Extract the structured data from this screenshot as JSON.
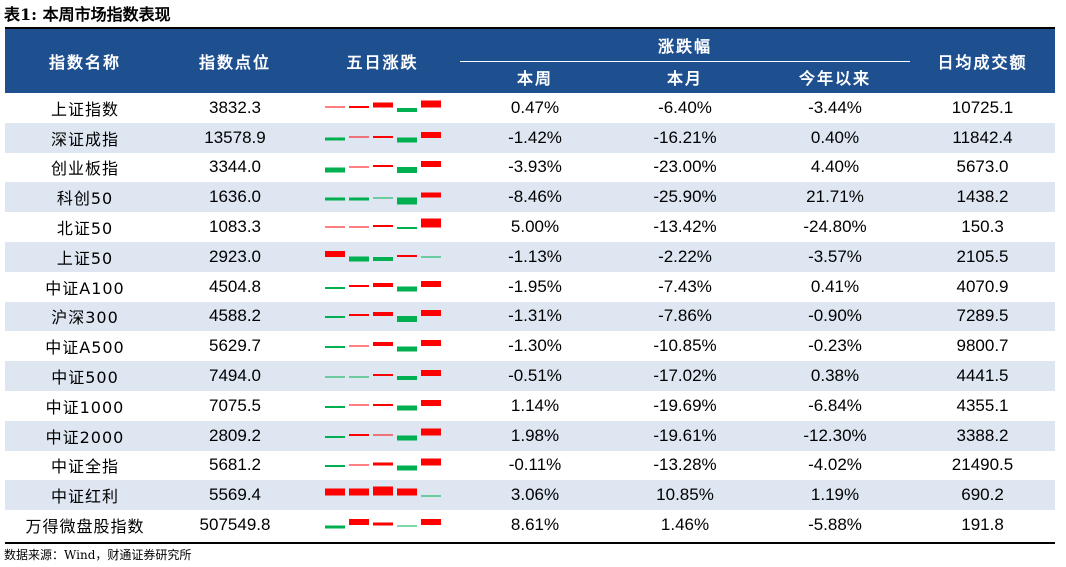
{
  "title": "表1: 本周市场指数表现",
  "header": {
    "name": "指数名称",
    "level": "指数点位",
    "five_day": "五日涨跌",
    "change_group": "涨跌幅",
    "week": "本周",
    "month": "本月",
    "ytd": "今年以来",
    "turnover": "日均成交额"
  },
  "colors": {
    "up": "#ff0000",
    "down": "#00b050",
    "header_bg": "#1e4f8f",
    "stripe": "#dde6f1"
  },
  "five_day_scale_pct": 2.5,
  "rows": [
    {
      "name": "上证指数",
      "level": "3832.3",
      "week": "0.47%",
      "month": "-6.40%",
      "ytd": "-3.44%",
      "turnover": "10725.1",
      "five_day": [
        0.1,
        0.4,
        0.9,
        -0.7,
        1.3
      ]
    },
    {
      "name": "深证成指",
      "level": "13578.9",
      "week": "-1.42%",
      "month": "-16.21%",
      "ytd": "0.40%",
      "turnover": "11842.4",
      "five_day": [
        -0.6,
        0.1,
        0.4,
        -0.9,
        1.1
      ]
    },
    {
      "name": "创业板指",
      "level": "3344.0",
      "week": "-3.93%",
      "month": "-23.00%",
      "ytd": "4.40%",
      "turnover": "5673.0",
      "five_day": [
        -0.9,
        0.1,
        0.4,
        -1.2,
        1.2
      ]
    },
    {
      "name": "科创50",
      "level": "1636.0",
      "week": "-8.46%",
      "month": "-25.90%",
      "ytd": "21.71%",
      "turnover": "1438.2",
      "five_day": [
        -0.6,
        -0.6,
        -0.1,
        -1.3,
        1.0
      ]
    },
    {
      "name": "北证50",
      "level": "1083.3",
      "week": "5.00%",
      "month": "-13.42%",
      "ytd": "-24.80%",
      "turnover": "150.3",
      "five_day": [
        0.1,
        0.1,
        0.3,
        -0.4,
        1.8
      ]
    },
    {
      "name": "上证50",
      "level": "2923.0",
      "week": "-1.13%",
      "month": "-2.22%",
      "ytd": "-3.57%",
      "turnover": "2105.5",
      "five_day": [
        1.1,
        -1.0,
        -0.8,
        0.4,
        -0.1
      ]
    },
    {
      "name": "中证A100",
      "level": "4504.8",
      "week": "-1.95%",
      "month": "-7.43%",
      "ytd": "0.41%",
      "turnover": "4070.9",
      "five_day": [
        -0.4,
        0.3,
        0.7,
        -1.0,
        1.2
      ]
    },
    {
      "name": "沪深300",
      "level": "4588.2",
      "week": "-1.31%",
      "month": "-7.86%",
      "ytd": "-0.90%",
      "turnover": "7289.5",
      "five_day": [
        -0.4,
        0.3,
        0.7,
        -1.1,
        1.2
      ]
    },
    {
      "name": "中证A500",
      "level": "5629.7",
      "week": "-1.30%",
      "month": "-10.85%",
      "ytd": "-0.23%",
      "turnover": "9800.7",
      "five_day": [
        -0.4,
        0.1,
        0.7,
        -1.0,
        1.2
      ]
    },
    {
      "name": "中证500",
      "level": "7494.0",
      "week": "-0.51%",
      "month": "-17.02%",
      "ytd": "0.38%",
      "turnover": "4441.5",
      "five_day": [
        -0.1,
        -0.1,
        0.4,
        -0.8,
        1.1
      ]
    },
    {
      "name": "中证1000",
      "level": "7075.5",
      "week": "1.14%",
      "month": "-19.69%",
      "ytd": "-6.84%",
      "turnover": "4355.1",
      "five_day": [
        -0.4,
        0.2,
        0.4,
        -1.0,
        1.2
      ]
    },
    {
      "name": "中证2000",
      "level": "2809.2",
      "week": "1.98%",
      "month": "-19.61%",
      "ytd": "-12.30%",
      "turnover": "3388.2",
      "five_day": [
        -0.4,
        0.4,
        0.1,
        -1.0,
        1.3
      ]
    },
    {
      "name": "中证全指",
      "level": "5681.2",
      "week": "-0.11%",
      "month": "-13.28%",
      "ytd": "-4.02%",
      "turnover": "21490.5",
      "five_day": [
        -0.4,
        0.2,
        0.6,
        -1.0,
        1.3
      ]
    },
    {
      "name": "中证红利",
      "level": "5569.4",
      "week": "3.06%",
      "month": "10.85%",
      "ytd": "1.19%",
      "turnover": "690.2",
      "five_day": [
        1.3,
        1.3,
        1.8,
        1.3,
        -0.1
      ]
    },
    {
      "name": "万得微盘股指数",
      "level": "507549.8",
      "week": "8.61%",
      "month": "1.46%",
      "ytd": "-5.88%",
      "turnover": "191.8",
      "five_day": [
        -0.5,
        1.1,
        0.6,
        -0.2,
        1.1
      ]
    }
  ],
  "footer": "数据来源：Wind，财通证券研究所"
}
